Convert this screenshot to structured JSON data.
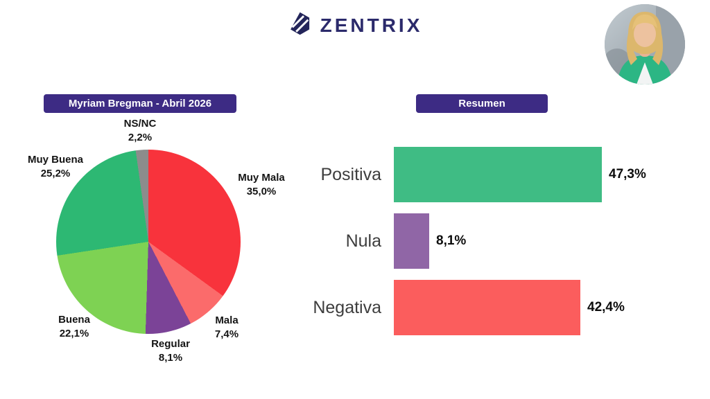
{
  "brand": {
    "name": "ZENTRIX"
  },
  "theme": {
    "badge_bg": "#3d2b84",
    "brand_color": "#2b2a6b"
  },
  "chart_data": [
    {
      "type": "pie",
      "title": "Myriam Bregman - Abril 2026",
      "labels": [
        "Muy Mala",
        "Mala",
        "Regular",
        "Buena",
        "Muy Buena",
        "NS/NC"
      ],
      "values": [
        35.0,
        7.4,
        8.1,
        22.1,
        25.2,
        2.2
      ],
      "value_labels": [
        "35,0%",
        "7,4%",
        "8,1%",
        "22,1%",
        "25,2%",
        "2,2%"
      ],
      "colors": [
        "#f8333c",
        "#fb6b6b",
        "#7b4397",
        "#7ed253",
        "#2db873",
        "#8c8c8c"
      ],
      "start_angle_deg": 0,
      "direction": "clockwise",
      "legend": "labels placed around slices"
    },
    {
      "type": "bar",
      "orientation": "horizontal",
      "title": "Resumen",
      "categories": [
        "Positiva",
        "Nula",
        "Negativa"
      ],
      "values": [
        47.3,
        8.1,
        42.4
      ],
      "value_labels": [
        "47,3%",
        "8,1%",
        "42,4%"
      ],
      "colors": [
        "#3fbc84",
        "#9066a6",
        "#fb5d5d"
      ],
      "xlim": [
        0,
        50
      ],
      "grid": false,
      "value_label_position": "right-of-bar"
    }
  ]
}
